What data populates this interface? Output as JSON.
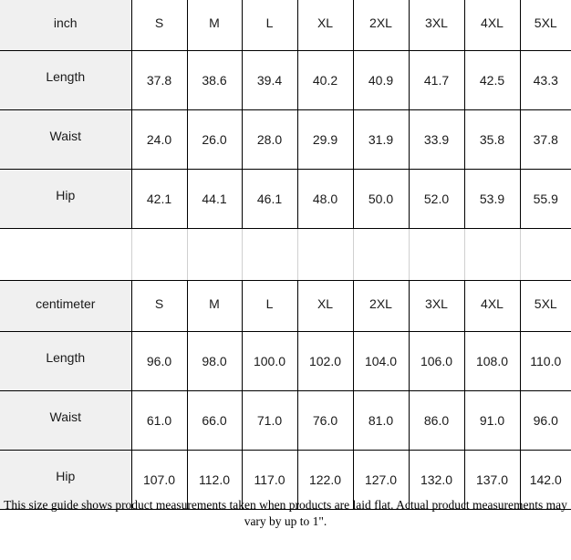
{
  "sizes": [
    "S",
    "M",
    "L",
    "XL",
    "2XL",
    "3XL",
    "4XL",
    "5XL"
  ],
  "tables": [
    {
      "unit": "inch",
      "rows": [
        {
          "label": "Length",
          "values": [
            "37.8",
            "38.6",
            "39.4",
            "40.2",
            "40.9",
            "41.7",
            "42.5",
            "43.3"
          ]
        },
        {
          "label": "Waist",
          "values": [
            "24.0",
            "26.0",
            "28.0",
            "29.9",
            "31.9",
            "33.9",
            "35.8",
            "37.8"
          ]
        },
        {
          "label": "Hip",
          "values": [
            "42.1",
            "44.1",
            "46.1",
            "48.0",
            "50.0",
            "52.0",
            "53.9",
            "55.9"
          ]
        }
      ]
    },
    {
      "unit": "centimeter",
      "rows": [
        {
          "label": "Length",
          "values": [
            "96.0",
            "98.0",
            "100.0",
            "102.0",
            "104.0",
            "106.0",
            "108.0",
            "110.0"
          ]
        },
        {
          "label": "Waist",
          "values": [
            "61.0",
            "66.0",
            "71.0",
            "76.0",
            "81.0",
            "86.0",
            "91.0",
            "96.0"
          ]
        },
        {
          "label": "Hip",
          "values": [
            "107.0",
            "112.0",
            "117.0",
            "122.0",
            "127.0",
            "132.0",
            "137.0",
            "142.0"
          ]
        }
      ]
    }
  ],
  "note": "This size guide shows product measurements taken when products are laid flat. Actual product measurements may vary by up to 1\"."
}
